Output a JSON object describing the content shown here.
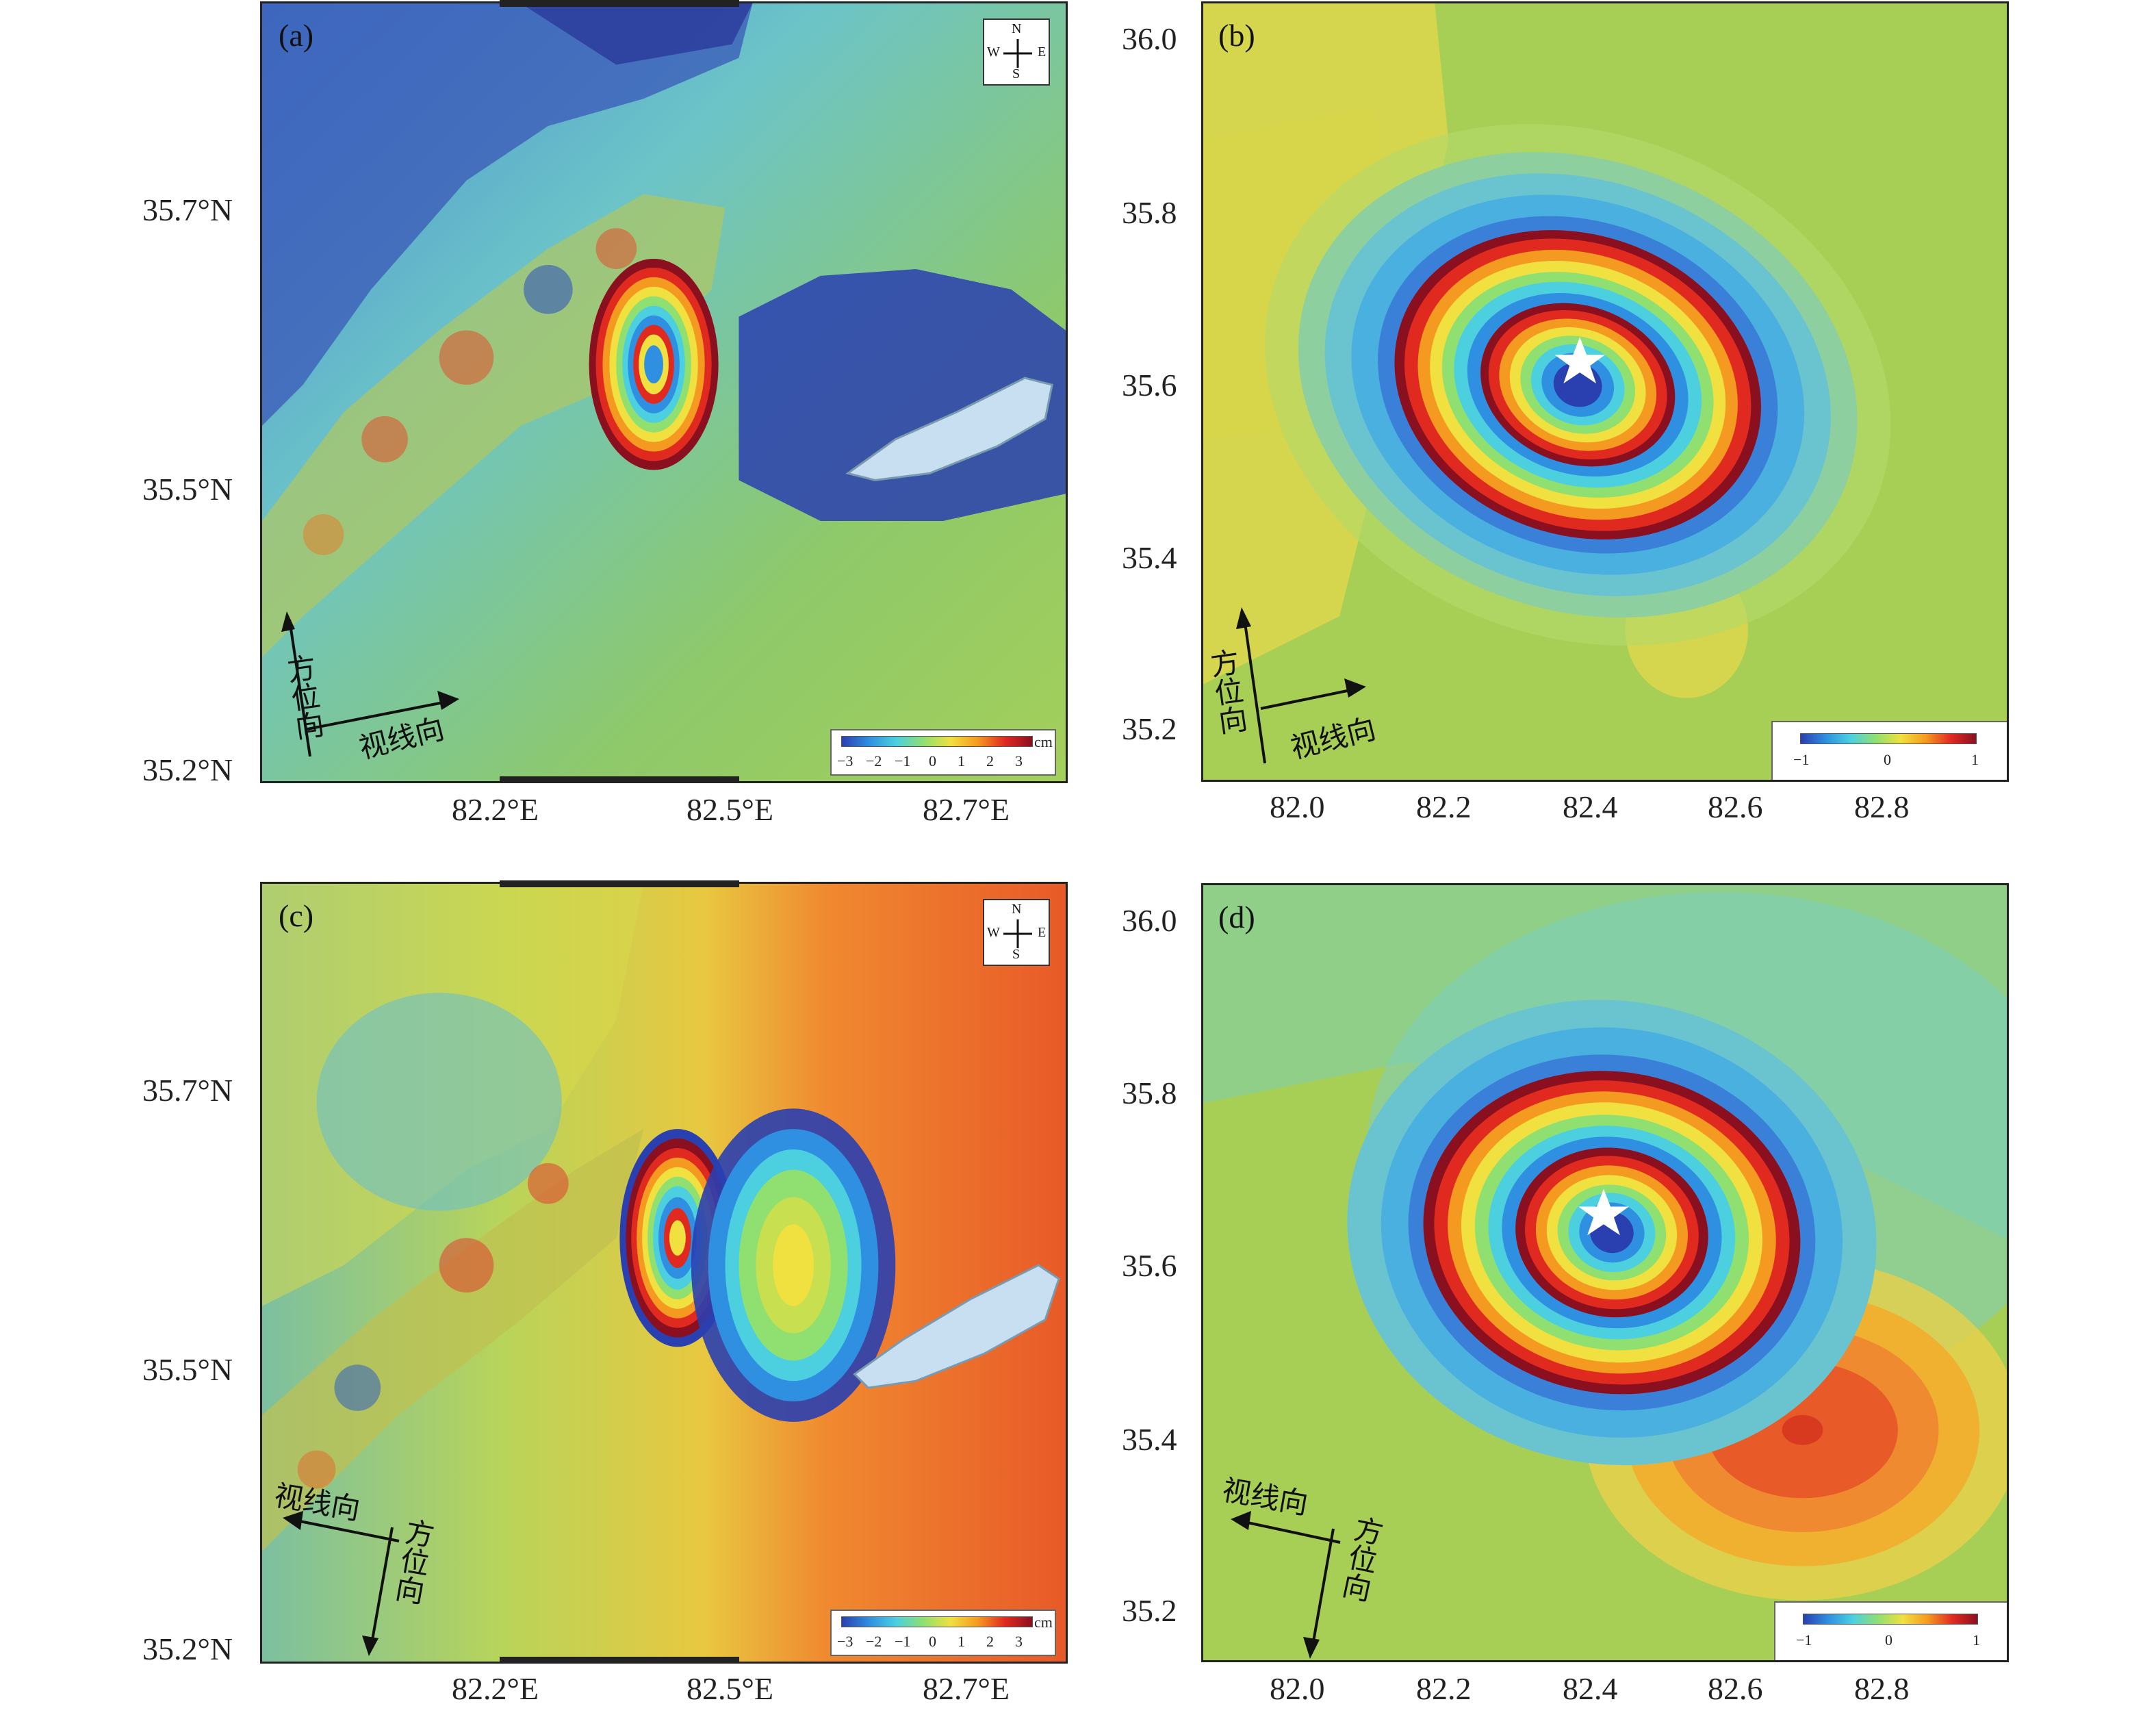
{
  "panels": {
    "a": {
      "letter": "(a)",
      "y_labels": [
        "35.7°N",
        "35.5°N",
        "35.2°N"
      ],
      "x_labels": [
        "82.2°E",
        "82.5°E",
        "82.7°E"
      ],
      "compass": {
        "n": "N",
        "s": "S",
        "w": "W",
        "e": "E"
      },
      "colorbar": {
        "ticks": [
          "−3",
          "−2",
          "−1",
          "0",
          "1",
          "2",
          "3"
        ],
        "unit": "cm"
      },
      "azimuth_label": "方位向",
      "los_label": "视线向"
    },
    "b": {
      "letter": "(b)",
      "y_labels": [
        "36.0",
        "35.8",
        "35.6",
        "35.4",
        "35.2"
      ],
      "x_labels": [
        "82.0",
        "82.2",
        "82.4",
        "82.6",
        "82.8"
      ],
      "colorbar": {
        "ticks": [
          "−1",
          "0",
          "1"
        ]
      },
      "azimuth_label": "方位向",
      "los_label": "视线向"
    },
    "c": {
      "letter": "(c)",
      "y_labels": [
        "35.7°N",
        "35.5°N",
        "35.2°N"
      ],
      "x_labels": [
        "82.2°E",
        "82.5°E",
        "82.7°E"
      ],
      "compass": {
        "n": "N",
        "s": "S",
        "w": "W",
        "e": "E"
      },
      "colorbar": {
        "ticks": [
          "−3",
          "−2",
          "−1",
          "0",
          "1",
          "2",
          "3"
        ],
        "unit": "cm"
      },
      "azimuth_label": "方位向",
      "los_label": "视线向"
    },
    "d": {
      "letter": "(d)",
      "y_labels": [
        "36.0",
        "35.8",
        "35.6",
        "35.4",
        "35.2"
      ],
      "x_labels": [
        "82.0",
        "82.2",
        "82.4",
        "82.6",
        "82.8"
      ],
      "colorbar": {
        "ticks": [
          "−1",
          "0",
          "1"
        ]
      },
      "azimuth_label": "方位向",
      "los_label": "视线向"
    }
  },
  "colors": {
    "fringe": [
      "#2a3fb0",
      "#2f8fe0",
      "#4cd0e0",
      "#8fe070",
      "#f0e040",
      "#f59a20",
      "#e02a20",
      "#8a1020"
    ],
    "background_green": "#8ec96a",
    "background_yellow": "#e8d84a",
    "lake": "#c7dff0",
    "star": "#ffffff"
  }
}
